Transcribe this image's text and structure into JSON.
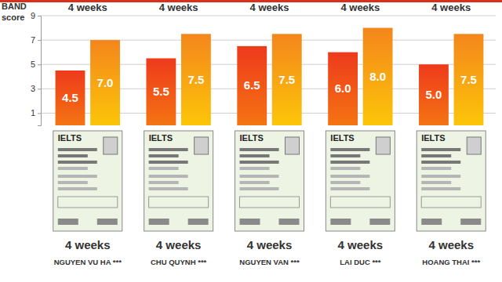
{
  "chart_data": {
    "type": "bar",
    "y_label": "BAND score",
    "categories": [
      "NGUYEN VU HA ***",
      "CHU QUYNH ***",
      "NGUYEN VAN ***",
      "LAI DUC ***",
      "HOANG THAI ***"
    ],
    "series": [
      {
        "color": "#ee3a1c",
        "values": [
          4.5,
          5.5,
          6.5,
          6.0,
          5.0
        ],
        "value_labels": [
          "4.5",
          "5.5",
          "6.5",
          "6.0",
          "5.0"
        ]
      },
      {
        "color": "#f4861c",
        "values": [
          7.0,
          7.5,
          7.5,
          8.0,
          7.5
        ],
        "value_labels": [
          "7.0",
          "7.5",
          "7.5",
          "8.0",
          "7.5"
        ]
      }
    ],
    "ylim": [
      0,
      9
    ],
    "yticks": [
      1,
      3,
      5,
      7,
      9
    ],
    "grid": true,
    "data_labels": true,
    "annotations": {
      "above_bars": [
        "4 weeks",
        "4 weeks",
        "4 weeks",
        "4 weeks",
        "4 weeks"
      ],
      "certificates": [
        "IELTS",
        "IELTS",
        "IELTS",
        "IELTS",
        "IELTS"
      ],
      "below_certificates": [
        "4 weeks",
        "4 weeks",
        "4 weeks",
        "4 weeks",
        "4 weeks"
      ]
    }
  }
}
